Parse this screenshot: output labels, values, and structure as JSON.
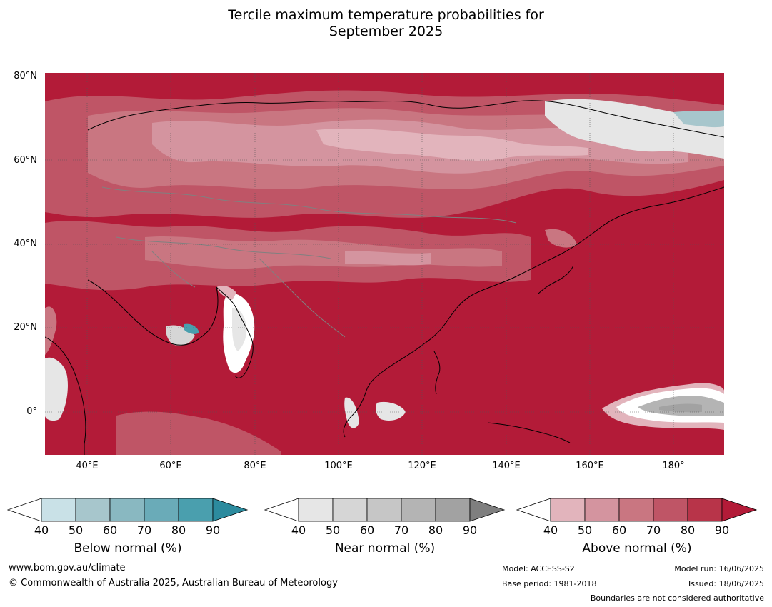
{
  "title": {
    "line1": "Tercile maximum temperature probabilities for",
    "line2": "September 2025"
  },
  "map": {
    "lat_labels": [
      "80°N",
      "60°N",
      "40°N",
      "20°N",
      "0°"
    ],
    "lon_labels": [
      "40°E",
      "60°E",
      "80°E",
      "100°E",
      "120°E",
      "140°E",
      "160°E",
      "180°"
    ],
    "dominant_color": "#b31b38"
  },
  "legend": {
    "below": {
      "label": "Below normal (%)",
      "ticks": [
        "40",
        "50",
        "60",
        "70",
        "80",
        "90"
      ],
      "colors": [
        "#ffffff",
        "#c9e1e7",
        "#a7c6cc",
        "#89b8c1",
        "#6aabb8",
        "#4a9fae",
        "#2c8b9e"
      ]
    },
    "near": {
      "label": "Near normal (%)",
      "ticks": [
        "40",
        "50",
        "60",
        "70",
        "80",
        "90"
      ],
      "colors": [
        "#ffffff",
        "#e6e6e6",
        "#d6d6d6",
        "#c6c6c6",
        "#b4b4b4",
        "#a2a2a2",
        "#7f7f7f"
      ]
    },
    "above": {
      "label": "Above normal (%)",
      "ticks": [
        "40",
        "50",
        "60",
        "70",
        "80",
        "90"
      ],
      "colors": [
        "#ffffff",
        "#e2b4bc",
        "#d4949f",
        "#c97681",
        "#bf5566",
        "#b83449",
        "#b31b38"
      ]
    }
  },
  "footer": {
    "website": "www.bom.gov.au/climate",
    "copyright": "© Commonwealth of Australia 2025, Australian Bureau of Meteorology",
    "model": "Model: ACCESS-S2",
    "base_period": "Base period: 1981-2018",
    "model_run": "Model run: 16/06/2025",
    "issued": "Issued: 18/06/2025",
    "disclaimer": "Boundaries are not considered authoritative"
  }
}
